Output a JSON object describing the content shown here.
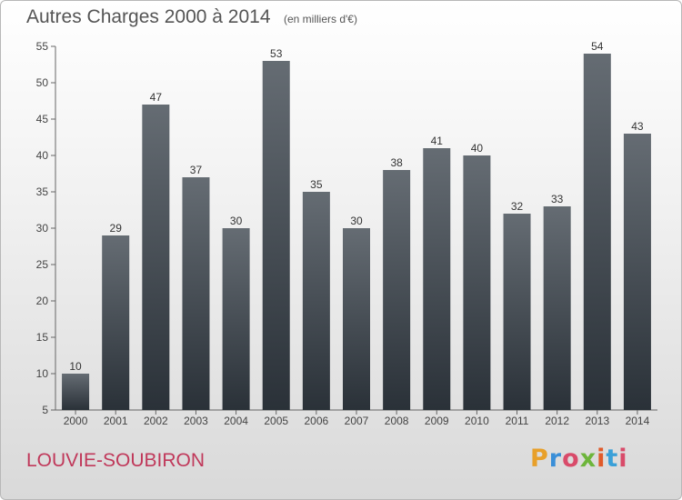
{
  "header": {
    "title": "Autres Charges 2000 à 2014",
    "subtitle": "(en milliers d'€)"
  },
  "footer": {
    "place": "LOUVIE-SOUBIRON",
    "logo": "Proxiti"
  },
  "colors": {
    "bar_top": "#656c73",
    "bar_bottom": "#2a3138",
    "place_text": "#c0385a",
    "logo_letters": [
      "#e8a02a",
      "#3a8fd8",
      "#d94b6a",
      "#6db53b",
      "#e05a2a",
      "#3aa0d8",
      "#d94b6a"
    ]
  },
  "chart_data": {
    "type": "bar",
    "title": "Autres Charges 2000 à 2014",
    "subtitle": "(en milliers d'€)",
    "categories": [
      "2000",
      "2001",
      "2002",
      "2003",
      "2004",
      "2005",
      "2006",
      "2007",
      "2008",
      "2009",
      "2010",
      "2011",
      "2012",
      "2013",
      "2014"
    ],
    "values": [
      10,
      29,
      47,
      37,
      30,
      53,
      35,
      30,
      38,
      41,
      40,
      32,
      33,
      54,
      43
    ],
    "value_labels": [
      "10",
      "29",
      "47",
      "37",
      "30",
      "53",
      "35",
      "30",
      "38",
      "41",
      "40",
      "32",
      "33",
      "54",
      "43"
    ],
    "ylim": [
      5,
      55
    ],
    "yticks": [
      5,
      10,
      15,
      20,
      25,
      30,
      35,
      40,
      45,
      50,
      55
    ],
    "grid": false,
    "legend": "none"
  }
}
